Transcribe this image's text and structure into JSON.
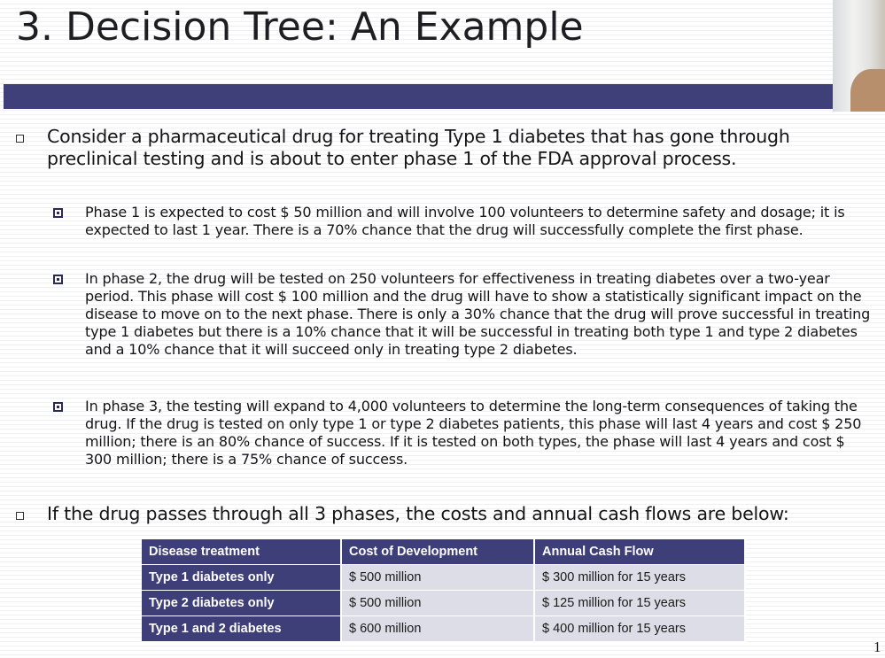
{
  "slide": {
    "title": "3. Decision Tree: An Example",
    "page_number": "1"
  },
  "bullets": [
    {
      "text": "Consider a pharmaceutical drug for treating Type 1 diabetes that has gone through preclinical testing and is about to enter phase 1 of the FDA approval process.",
      "sub_items": [
        "Phase 1 is expected to cost $ 50 million and will involve 100 volunteers to determine safety and dosage; it is expected to last 1 year. There is a 70% chance that the drug will successfully complete the first phase.",
        "In phase 2, the drug will be tested on 250 volunteers for effectiveness in treating diabetes over a two-year period. This phase will cost $ 100 million and the drug will have to show a statistically significant impact on the disease to move on to the next phase. There is only a 30% chance that the drug will prove successful in treating type 1 diabetes but there is a 10% chance that it will be successful in treating both type 1 and type 2 diabetes and a 10% chance that it will succeed only in treating type 2 diabetes.",
        "In phase 3, the testing will expand to 4,000 volunteers to determine the long-term consequences of taking the drug. If the drug is tested on only type 1 or type 2 diabetes patients, this phase will last 4 years and cost $ 250 million; there is an 80% chance of success. If it is tested on both types, the phase will last 4 years and cost $ 300 million; there is a 75% chance of success."
      ]
    },
    {
      "text": "If the drug passes through all 3 phases, the costs and annual cash flows are below:"
    }
  ],
  "table": {
    "headers": [
      "Disease treatment",
      "Cost of Development",
      "Annual Cash Flow"
    ],
    "rows": [
      [
        "Type 1 diabetes only",
        "$ 500 million",
        "$ 300 million for 15 years"
      ],
      [
        "Type 2 diabetes only",
        "$ 500 million",
        "$ 125 million for 15 years"
      ],
      [
        "Type 1 and 2 diabetes",
        "$ 600 million",
        "$ 400 million for 15 years"
      ]
    ]
  },
  "colors": {
    "title_bar": "#3f3f7a",
    "table_header": "#3e3e79",
    "table_cell": "#dcdde6"
  }
}
